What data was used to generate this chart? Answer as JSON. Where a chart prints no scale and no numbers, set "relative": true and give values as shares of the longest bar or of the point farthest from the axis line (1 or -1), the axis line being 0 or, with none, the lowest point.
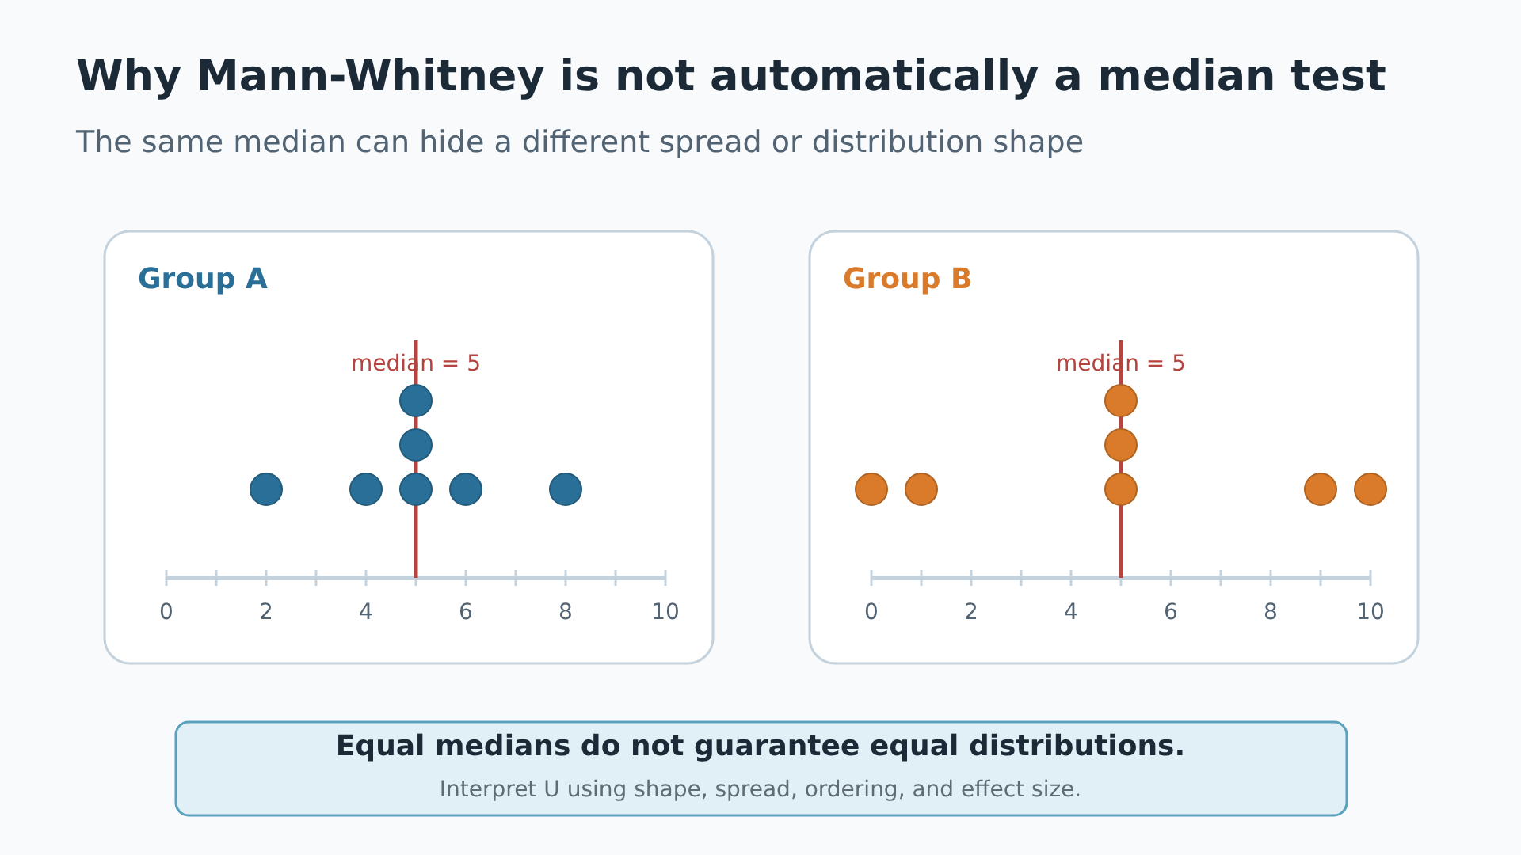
{
  "chart_data": [
    {
      "type": "other",
      "title": "Why Mann-Whitney is not automatically a median test",
      "subtitle": "The same median can hide a different spread or distribution shape"
    },
    {
      "type": "scatter",
      "title": "Group A",
      "relative": true,
      "color": "#2a6f97",
      "x": [
        2,
        4,
        5,
        5,
        5,
        6,
        8
      ],
      "values": [
        0.5,
        0.5,
        0.5,
        0.75,
        1,
        0.5,
        0.5
      ],
      "xlim": [
        0,
        10
      ],
      "xticks": [
        0,
        {
          "value": 1,
          "label": null
        },
        2,
        {
          "value": 3,
          "label": null
        },
        4,
        {
          "value": 5,
          "label": null
        },
        6,
        {
          "value": 7,
          "label": null
        },
        8,
        {
          "value": 9,
          "label": null
        },
        10
      ],
      "ref_lines": [
        {
          "axis": "x",
          "value": 5,
          "label": "median = 5",
          "color": "#b5443f"
        }
      ],
      "marker": "circle"
    },
    {
      "type": "scatter",
      "title": "Group B",
      "relative": true,
      "color": "#d97b2b",
      "x": [
        0,
        1,
        5,
        5,
        5,
        9,
        10
      ],
      "values": [
        0.5,
        0.5,
        0.5,
        0.75,
        1,
        0.5,
        0.5
      ],
      "xlim": [
        0,
        10
      ],
      "xticks": [
        0,
        {
          "value": 1,
          "label": null
        },
        2,
        {
          "value": 3,
          "label": null
        },
        4,
        {
          "value": 5,
          "label": null
        },
        6,
        {
          "value": 7,
          "label": null
        },
        8,
        {
          "value": 9,
          "label": null
        },
        10
      ],
      "ref_lines": [
        {
          "axis": "x",
          "value": 5,
          "label": "median = 5",
          "color": "#b5443f"
        }
      ],
      "marker": "circle"
    },
    {
      "type": "other",
      "title": "Equal medians do not guarantee equal distributions.",
      "annotations": [
        "Interpret U using shape, spread, ordering, and effect size."
      ]
    }
  ]
}
